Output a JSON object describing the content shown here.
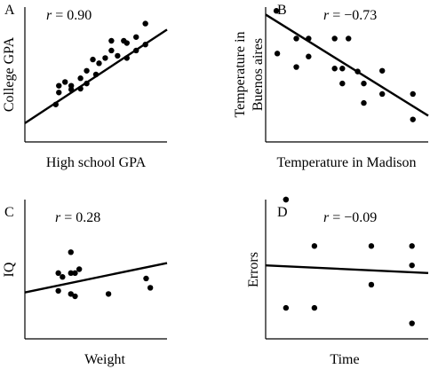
{
  "chart_data": [
    {
      "type": "scatter",
      "panel_label": "A",
      "r_symbol": "r",
      "r_value": "= 0.90",
      "xlabel": "High school GPA",
      "ylabel": "College GPA",
      "points": [
        [
          0.5,
          0.5
        ],
        [
          0.55,
          0.75
        ],
        [
          0.55,
          0.66
        ],
        [
          0.65,
          0.8
        ],
        [
          0.75,
          0.7
        ],
        [
          0.75,
          0.75
        ],
        [
          0.9,
          0.85
        ],
        [
          0.9,
          0.71
        ],
        [
          1.0,
          0.78
        ],
        [
          1.0,
          0.95
        ],
        [
          1.1,
          1.1
        ],
        [
          1.15,
          0.9
        ],
        [
          1.2,
          1.05
        ],
        [
          1.3,
          1.12
        ],
        [
          1.4,
          1.35
        ],
        [
          1.4,
          1.22
        ],
        [
          1.5,
          1.15
        ],
        [
          1.6,
          1.35
        ],
        [
          1.65,
          1.32
        ],
        [
          1.65,
          1.12
        ],
        [
          1.8,
          1.22
        ],
        [
          1.8,
          1.4
        ],
        [
          1.95,
          1.58
        ],
        [
          1.95,
          1.3
        ]
      ],
      "fit_line": [
        [
          0.0,
          0.25
        ],
        [
          2.3,
          1.5
        ]
      ],
      "xlim": [
        0,
        2.3
      ],
      "ylim": [
        0,
        1.8
      ]
    },
    {
      "type": "scatter",
      "panel_label": "B",
      "r_symbol": "r",
      "r_value": "= −0.73",
      "xlabel": "Temperature in Madison",
      "ylabel": "Temperature in Buenos aires",
      "points": [
        [
          0.35,
          1.75
        ],
        [
          0.38,
          1.18
        ],
        [
          1.0,
          1.38
        ],
        [
          1.0,
          1.0
        ],
        [
          1.4,
          1.38
        ],
        [
          1.4,
          1.14
        ],
        [
          2.25,
          1.38
        ],
        [
          2.25,
          0.98
        ],
        [
          2.7,
          1.38
        ],
        [
          2.5,
          0.98
        ],
        [
          2.5,
          0.78
        ],
        [
          3.0,
          0.94
        ],
        [
          3.2,
          0.78
        ],
        [
          3.2,
          0.52
        ],
        [
          3.8,
          0.95
        ],
        [
          3.8,
          0.64
        ],
        [
          4.8,
          0.64
        ],
        [
          4.8,
          0.3
        ]
      ],
      "fit_line": [
        [
          0.0,
          1.7
        ],
        [
          5.3,
          0.35
        ]
      ],
      "xlim": [
        0,
        5.3
      ],
      "ylim": [
        0,
        1.8
      ]
    },
    {
      "type": "scatter",
      "panel_label": "C",
      "r_symbol": "r",
      "r_value": "= 0.28",
      "xlabel": "Weight",
      "ylabel": "IQ",
      "points": [
        [
          0.4,
          0.85
        ],
        [
          0.4,
          0.62
        ],
        [
          0.55,
          1.12
        ],
        [
          0.55,
          0.58
        ],
        [
          0.6,
          0.55
        ],
        [
          0.55,
          0.85
        ],
        [
          1.0,
          0.58
        ],
        [
          0.6,
          0.85
        ],
        [
          1.45,
          0.78
        ],
        [
          1.5,
          0.66
        ],
        [
          0.45,
          0.8
        ],
        [
          0.65,
          0.9
        ]
      ],
      "fit_line": [
        [
          0.0,
          0.6
        ],
        [
          1.7,
          0.98
        ]
      ],
      "xlim": [
        0,
        1.7
      ],
      "ylim": [
        0,
        1.8
      ]
    },
    {
      "type": "scatter",
      "panel_label": "D",
      "r_symbol": "r",
      "r_value": "= −0.09",
      "xlabel": "Time",
      "ylabel": "Errors",
      "points": [
        [
          0.25,
          1.8
        ],
        [
          0.25,
          0.4
        ],
        [
          0.25,
          1.8
        ],
        [
          0.6,
          1.2
        ],
        [
          0.6,
          0.4
        ],
        [
          1.3,
          0.7
        ],
        [
          1.3,
          1.2
        ],
        [
          1.8,
          1.2
        ],
        [
          1.8,
          0.95
        ],
        [
          1.8,
          0.2
        ]
      ],
      "fit_line": [
        [
          0.0,
          0.95
        ],
        [
          2.0,
          0.85
        ]
      ],
      "xlim": [
        0,
        2.0
      ],
      "ylim": [
        0,
        1.8
      ]
    }
  ]
}
